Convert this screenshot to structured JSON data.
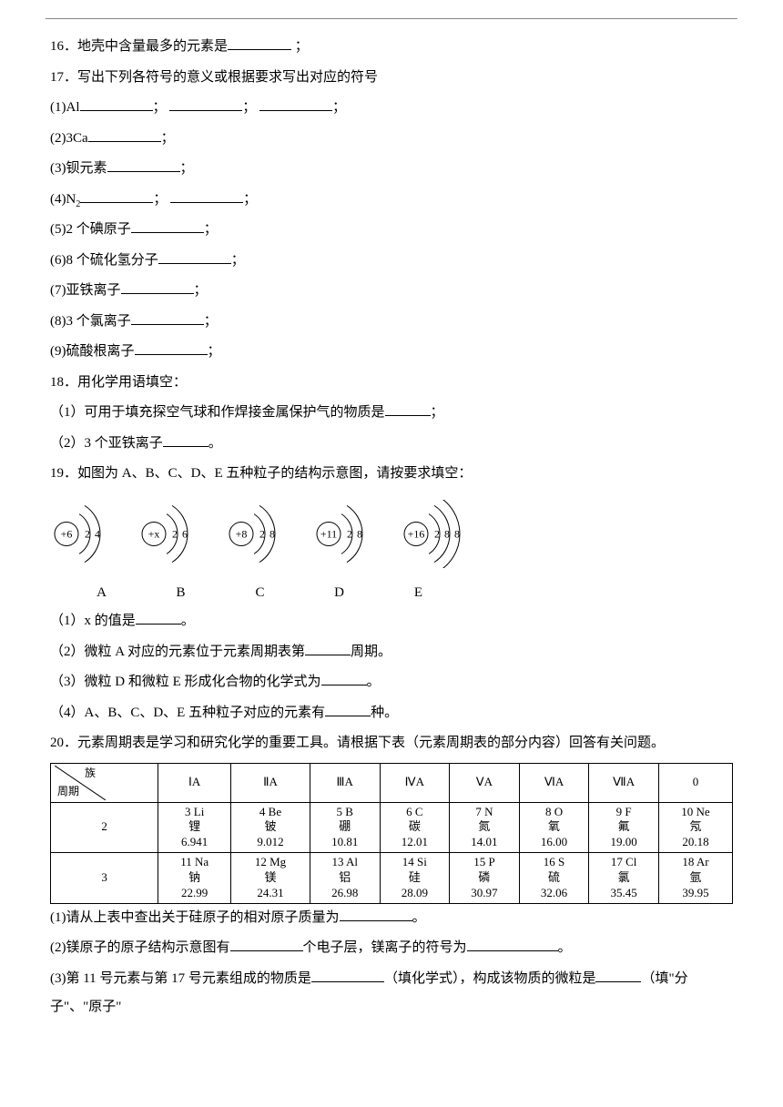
{
  "q16": {
    "num": "16．",
    "text": "地壳中含量最多的元素是",
    "end": "；"
  },
  "q17": {
    "num": "17．",
    "text": "写出下列各符号的意义或根据要求写出对应的符号",
    "items": [
      {
        "label": "(1)Al",
        "blanks": 3,
        "sep": "；"
      },
      {
        "label": "(2)3Ca",
        "blanks": 1,
        "sep": "；"
      },
      {
        "label": "(3)钡元素",
        "blanks": 1,
        "sep": "；"
      },
      {
        "label": "(4)N",
        "sub": "2",
        "blanks": 2,
        "sep": "；"
      },
      {
        "label": "(5)2 个碘原子",
        "blanks": 1,
        "sep": "；"
      },
      {
        "label": "(6)8 个硫化氢分子",
        "blanks": 1,
        "sep": "；"
      },
      {
        "label": "(7)亚铁离子",
        "blanks": 1,
        "sep": "；"
      },
      {
        "label": "(8)3 个氯离子",
        "blanks": 1,
        "sep": "；"
      },
      {
        "label": "(9)硫酸根离子",
        "blanks": 1,
        "sep": "；"
      }
    ]
  },
  "q18": {
    "num": "18．",
    "text": "用化学用语填空：",
    "s1": "（1）可用于填充探空气球和作焊接金属保护气的物质是",
    "s1end": "；",
    "s2": "（2）3 个亚铁离子",
    "s2end": "。"
  },
  "q19": {
    "num": "19．",
    "text": "如图为 A、B、C、D、E 五种粒子的结构示意图，请按要求填空：",
    "atoms": [
      {
        "center": "+6",
        "shells": [
          "2",
          "4"
        ],
        "label": "A"
      },
      {
        "center": "+x",
        "shells": [
          "2",
          "6"
        ],
        "label": "B"
      },
      {
        "center": "+8",
        "shells": [
          "2",
          "8"
        ],
        "label": "C"
      },
      {
        "center": "+11",
        "shells": [
          "2",
          "8"
        ],
        "label": "D"
      },
      {
        "center": "+16",
        "shells": [
          "2",
          "8",
          "8"
        ],
        "label": "E"
      }
    ],
    "s1": "（1）x 的值是",
    "s1end": "。",
    "s2": "（2）微粒 A 对应的元素位于元素周期表第",
    "s2mid": "周期。",
    "s3": "（3）微粒 D 和微粒 E 形成化合物的化学式为",
    "s3end": "。",
    "s4": "（4）A、B、C、D、E 五种粒子对应的元素有",
    "s4mid": "种。"
  },
  "q20": {
    "num": "20．",
    "text": "元素周期表是学习和研究化学的重要工具。请根据下表（元素周期表的部分内容）回答有关问题。",
    "corner": {
      "zu": "族",
      "zhouqi": "周期"
    },
    "groups": [
      "ⅠA",
      "ⅡA",
      "ⅢA",
      "ⅣA",
      "ⅤA",
      "ⅥA",
      "ⅦA",
      "0"
    ],
    "rows": [
      {
        "period": "2",
        "cells": [
          {
            "l1": "3 Li",
            "l2": "锂",
            "l3": "6.941"
          },
          {
            "l1": "4 Be",
            "l2": "铍",
            "l3": "9.012"
          },
          {
            "l1": "5 B",
            "l2": "硼",
            "l3": "10.81"
          },
          {
            "l1": "6 C",
            "l2": "碳",
            "l3": "12.01"
          },
          {
            "l1": "7 N",
            "l2": "氮",
            "l3": "14.01"
          },
          {
            "l1": "8 O",
            "l2": "氧",
            "l3": "16.00"
          },
          {
            "l1": "9 F",
            "l2": "氟",
            "l3": "19.00"
          },
          {
            "l1": "10 Ne",
            "l2": "氖",
            "l3": "20.18"
          }
        ]
      },
      {
        "period": "3",
        "cells": [
          {
            "l1": "11 Na",
            "l2": "钠",
            "l3": "22.99"
          },
          {
            "l1": "12 Mg",
            "l2": "镁",
            "l3": "24.31"
          },
          {
            "l1": "13 Al",
            "l2": "铝",
            "l3": "26.98"
          },
          {
            "l1": "14 Si",
            "l2": "硅",
            "l3": "28.09"
          },
          {
            "l1": "15 P",
            "l2": "磷",
            "l3": "30.97"
          },
          {
            "l1": "16 S",
            "l2": "硫",
            "l3": "32.06"
          },
          {
            "l1": "17 Cl",
            "l2": "氯",
            "l3": "35.45"
          },
          {
            "l1": "18 Ar",
            "l2": "氩",
            "l3": "39.95"
          }
        ]
      }
    ],
    "s1": "(1)请从上表中查出关于硅原子的相对原子质量为",
    "s1end": "。",
    "s2a": "(2)镁原子的原子结构示意图有",
    "s2b": "个电子层，镁离子的符号为",
    "s2end": "。",
    "s3a": "(3)第 11 号元素与第 17 号元素组成的物质是",
    "s3b": "（填化学式），构成该物质的微粒是",
    "s3c": "（填\"分子\"、\"原子\""
  }
}
